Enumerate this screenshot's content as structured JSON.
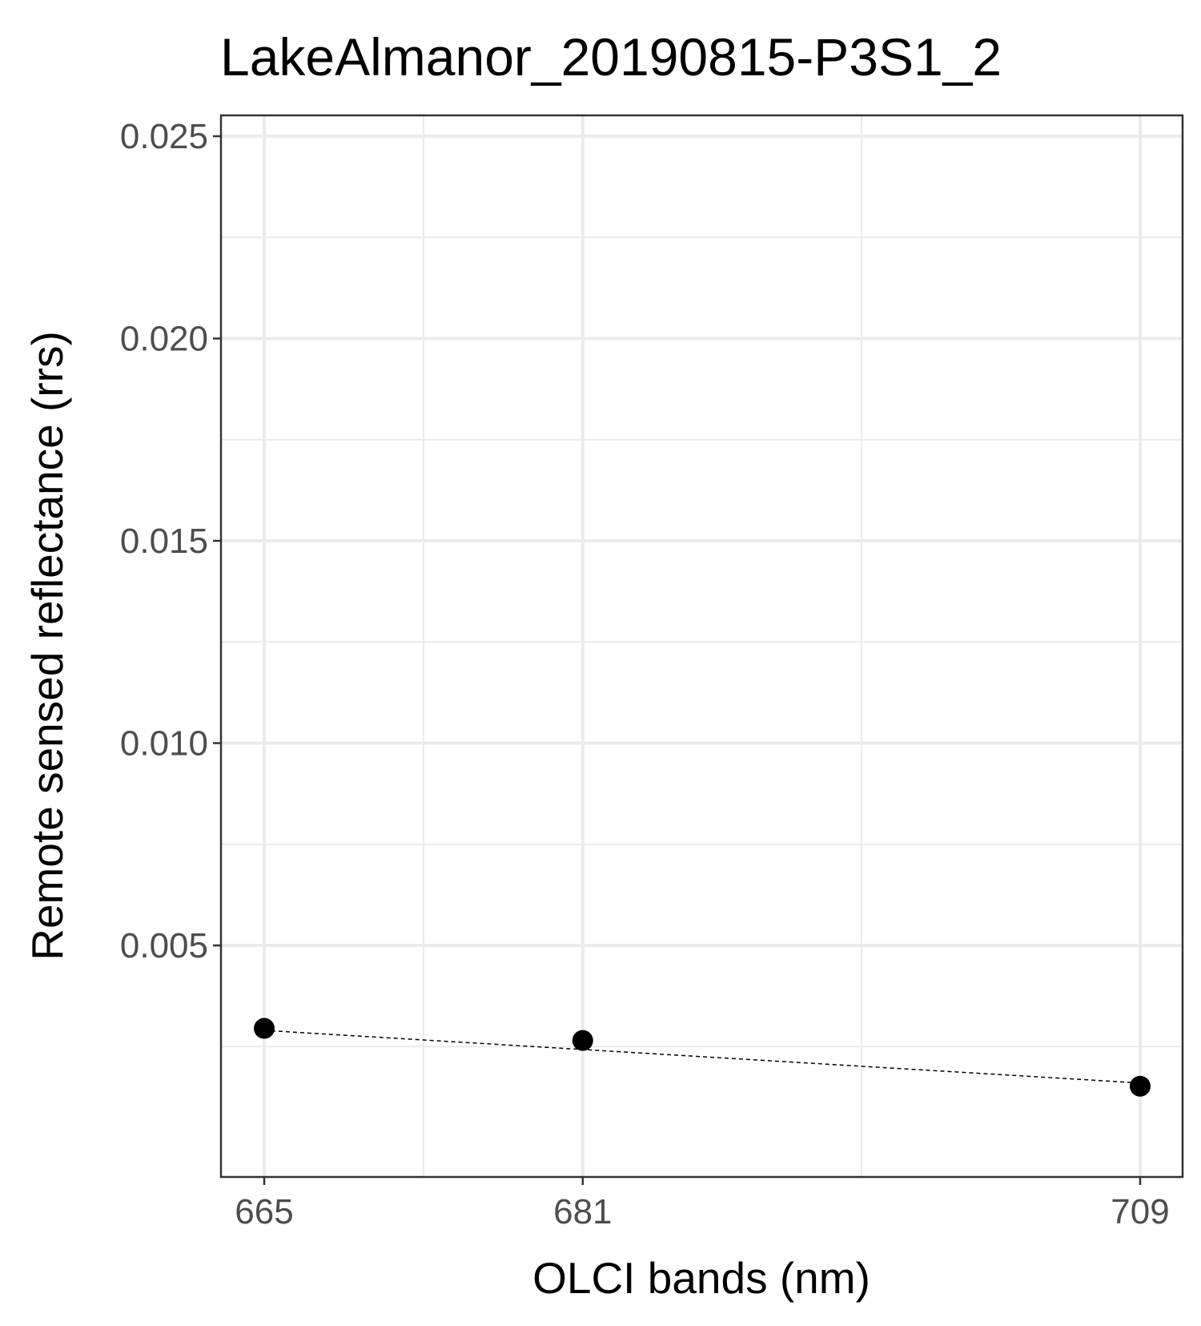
{
  "chart_data": {
    "type": "scatter",
    "title": "LakeAlmanor_20190815-P3S1_2",
    "xlabel": "OLCI bands (nm)",
    "ylabel": "Remote sensed reflectance (rrs)",
    "x_tick_labels": [
      "665",
      "681",
      "709"
    ],
    "y_tick_labels": [
      "0.005",
      "0.010",
      "0.015",
      "0.020",
      "0.025"
    ],
    "ylim": [
      0.0,
      0.025
    ],
    "grid": true,
    "points": [
      {
        "x": 665,
        "y": 0.00295
      },
      {
        "x": 681,
        "y": 0.00265
      },
      {
        "x": 709,
        "y": 0.00152
      }
    ],
    "trend_line": {
      "style": "dashed",
      "start": {
        "x": 665,
        "y": 0.0029
      },
      "end": {
        "x": 709,
        "y": 0.0016
      }
    },
    "colors": {
      "points": "#000000",
      "grid": "#ebebeb",
      "panel_border": "#333333",
      "tick_label": "#4d4d4d"
    }
  }
}
